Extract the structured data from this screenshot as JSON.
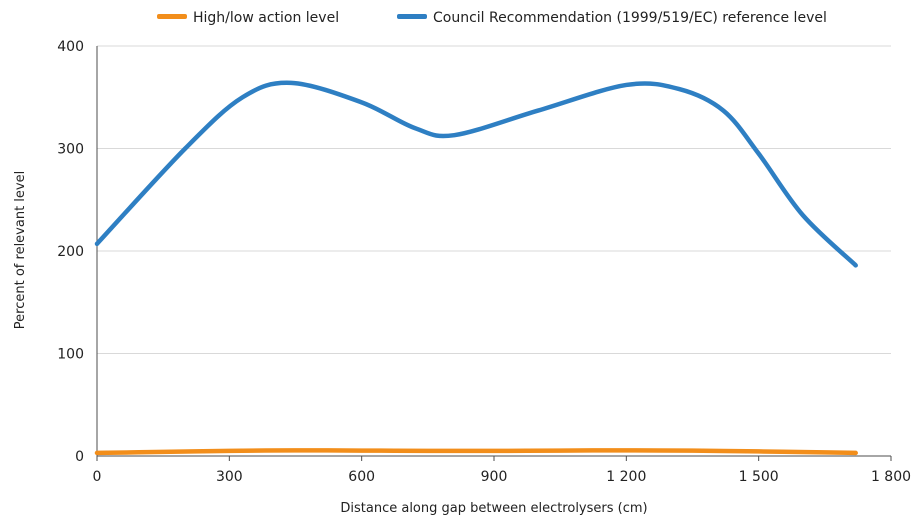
{
  "chart_data": {
    "type": "line",
    "title": "",
    "xlabel": "Distance along gap between electrolysers (cm)",
    "ylabel": "Percent of relevant level",
    "xlim": [
      0,
      1800
    ],
    "ylim": [
      0,
      400
    ],
    "x_ticks": [
      0,
      300,
      600,
      900,
      1200,
      1500,
      1800
    ],
    "x_tick_labels": [
      "0",
      "300",
      "600",
      "900",
      "1 200",
      "1 500",
      "1 800"
    ],
    "y_ticks": [
      0,
      100,
      200,
      300,
      400
    ],
    "y_tick_labels": [
      "0",
      "100",
      "200",
      "300",
      "400"
    ],
    "grid": "horizontal",
    "legend_position": "top",
    "series": [
      {
        "name": "High/low action level",
        "color": "#f28e1b",
        "x": [
          0,
          150,
          300,
          450,
          600,
          750,
          900,
          1050,
          1200,
          1350,
          1500,
          1650,
          1720
        ],
        "y": [
          3,
          4,
          5,
          5.5,
          5.3,
          5,
          5,
          5.3,
          5.5,
          5.2,
          4.5,
          3.5,
          3
        ]
      },
      {
        "name": "Council Recommendation (1999/519/EC) reference level",
        "color": "#2e7fc3",
        "x": [
          0,
          200,
          330,
          440,
          600,
          720,
          810,
          1000,
          1200,
          1320,
          1420,
          1500,
          1600,
          1720
        ],
        "y": [
          207,
          300,
          350,
          364,
          345,
          320,
          313,
          337,
          362,
          358,
          337,
          295,
          235,
          186
        ]
      }
    ]
  }
}
